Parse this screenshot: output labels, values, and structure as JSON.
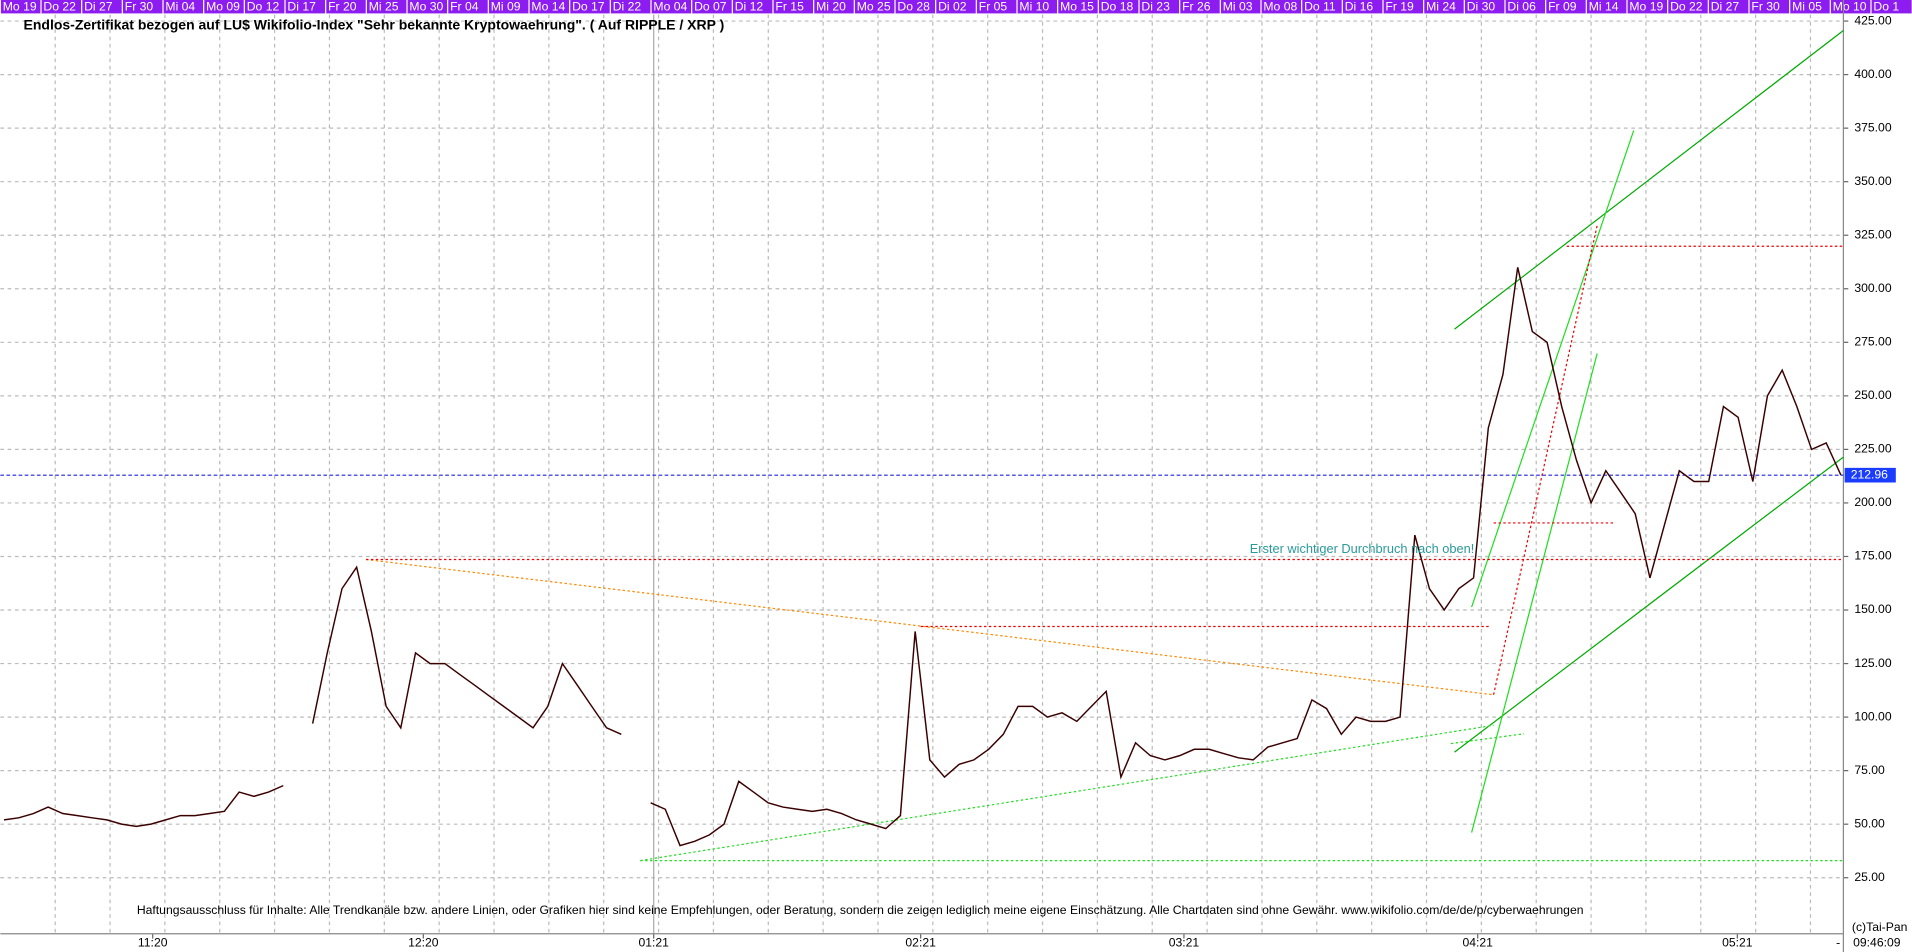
{
  "chart_data": {
    "type": "line",
    "title": "Endlos-Zertifikat bezogen auf LU$ Wikifolio-Index \"Sehr bekannte Kryptowaehrung\". ( Auf RIPPLE / XRP )",
    "top_dates": [
      "Mo 19",
      "Do 22",
      "Di 27",
      "Fr 30",
      "Mi 04",
      "Mo 09",
      "Do 12",
      "Di 17",
      "Fr 20",
      "Mi 25",
      "Mo 30",
      "Fr 04",
      "Mi 09",
      "Mo 14",
      "Do 17",
      "Di 22",
      "Mo 04",
      "Do 07",
      "Di 12",
      "Fr 15",
      "Mi 20",
      "Mo 25",
      "Do 28",
      "Di 02",
      "Fr 05",
      "Mi 10",
      "Mo 15",
      "Do 18",
      "Di 23",
      "Fr 26",
      "Mi 03",
      "Mo 08",
      "Do 11",
      "Di 16",
      "Fr 19",
      "Mi 24",
      "Di 30",
      "Di 06",
      "Fr 09",
      "Mi 14",
      "Mo 19",
      "Do 22",
      "Di 27",
      "Fr 30",
      "Mi 05",
      "Mo 10",
      "Do 1"
    ],
    "x_labels": [
      "11:20",
      "12:20",
      "01:21",
      "02:21",
      "03:21",
      "04:21",
      "05:21"
    ],
    "series": [
      {
        "name": "RIPPLE / XRP",
        "color": "#3a0000",
        "values": [
          52,
          53,
          55,
          58,
          55,
          54,
          53,
          52,
          50,
          49,
          50,
          52,
          54,
          54,
          55,
          56,
          65,
          63,
          65,
          68,
          null,
          97,
          130,
          160,
          170,
          140,
          105,
          95,
          130,
          125,
          125,
          120,
          115,
          110,
          105,
          100,
          95,
          105,
          125,
          115,
          105,
          95,
          92,
          null,
          60,
          57,
          40,
          42,
          45,
          50,
          70,
          65,
          60,
          58,
          57,
          56,
          57,
          55,
          52,
          50,
          48,
          54,
          140,
          80,
          72,
          78,
          80,
          85,
          92,
          105,
          105,
          100,
          102,
          98,
          105,
          112,
          72,
          88,
          82,
          80,
          82,
          85,
          85,
          83,
          81,
          80,
          86,
          88,
          90,
          108,
          104,
          92,
          100,
          98,
          98,
          100,
          185,
          160,
          150,
          160,
          165,
          235,
          260,
          310,
          280,
          275,
          245,
          220,
          200,
          215,
          205,
          195,
          165,
          190,
          215,
          210,
          210,
          245,
          240,
          210,
          250,
          262,
          245,
          225,
          228,
          212.96
        ]
      }
    ],
    "last_price": 212.96,
    "ylim": [
      0,
      428
    ],
    "yticks": [
      {
        "value": 25,
        "label": "25.00"
      },
      {
        "value": 50,
        "label": "50.00"
      },
      {
        "value": 75,
        "label": "75.00"
      },
      {
        "value": 100,
        "label": "100.00"
      },
      {
        "value": 125,
        "label": "125.00"
      },
      {
        "value": 150,
        "label": "150.00"
      },
      {
        "value": 175,
        "label": "175.00"
      },
      {
        "value": 200,
        "label": "200.00"
      },
      {
        "value": 225,
        "label": "225.00"
      },
      {
        "value": 250,
        "label": "250.00"
      },
      {
        "value": 275,
        "label": "275.00"
      },
      {
        "value": 300,
        "label": "300.00"
      },
      {
        "value": 325,
        "label": "325.00"
      },
      {
        "value": 350,
        "label": "350.00"
      },
      {
        "value": 375,
        "label": "375.00"
      },
      {
        "value": 400,
        "label": "400.00"
      },
      {
        "value": 425,
        "label": "425.00"
      }
    ],
    "grid": true,
    "annotation": "Erster wichtiger Durchbruch nach oben!",
    "disclaimer": "Haftungsausschluss für Inhalte: Alle Trendkanäle bzw. andere Linien, oder Grafiken hier sind keine Empfehlungen, oder Beratung, sondern die zeigen lediglich meine eigene Einschätzung. Alle Chartdaten sind ohne Gewähr.  www.wikifolio.com/de/de/p/cyberwaehrungen",
    "copyright": "(c)Tai-Pan",
    "time": "09:46:09",
    "dash": "-"
  }
}
